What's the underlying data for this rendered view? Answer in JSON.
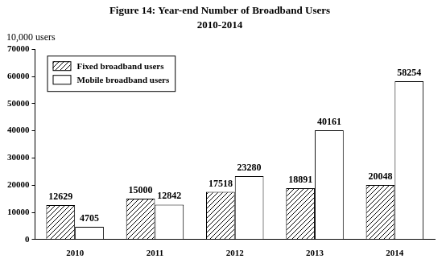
{
  "chart_data": {
    "type": "bar",
    "title": "Figure 14: Year-end Number of Broadband Users",
    "subtitle": "2010-2014",
    "ylabel": "10,000 users",
    "categories": [
      "2010",
      "2011",
      "2012",
      "2013",
      "2014"
    ],
    "series": [
      {
        "name": "Fixed broadband users",
        "color": "#000000",
        "values": [
          12629,
          15000,
          17518,
          18891,
          20048
        ]
      },
      {
        "name": "Mobile broadband users",
        "color": "#ffffff",
        "values": [
          4705,
          12842,
          23280,
          40161,
          58254
        ]
      }
    ],
    "ylim": [
      0,
      70000
    ],
    "yticks": [
      0,
      10000,
      20000,
      30000,
      40000,
      50000,
      60000,
      70000
    ],
    "grid": false,
    "legend": "top-left",
    "data_labels": true
  }
}
